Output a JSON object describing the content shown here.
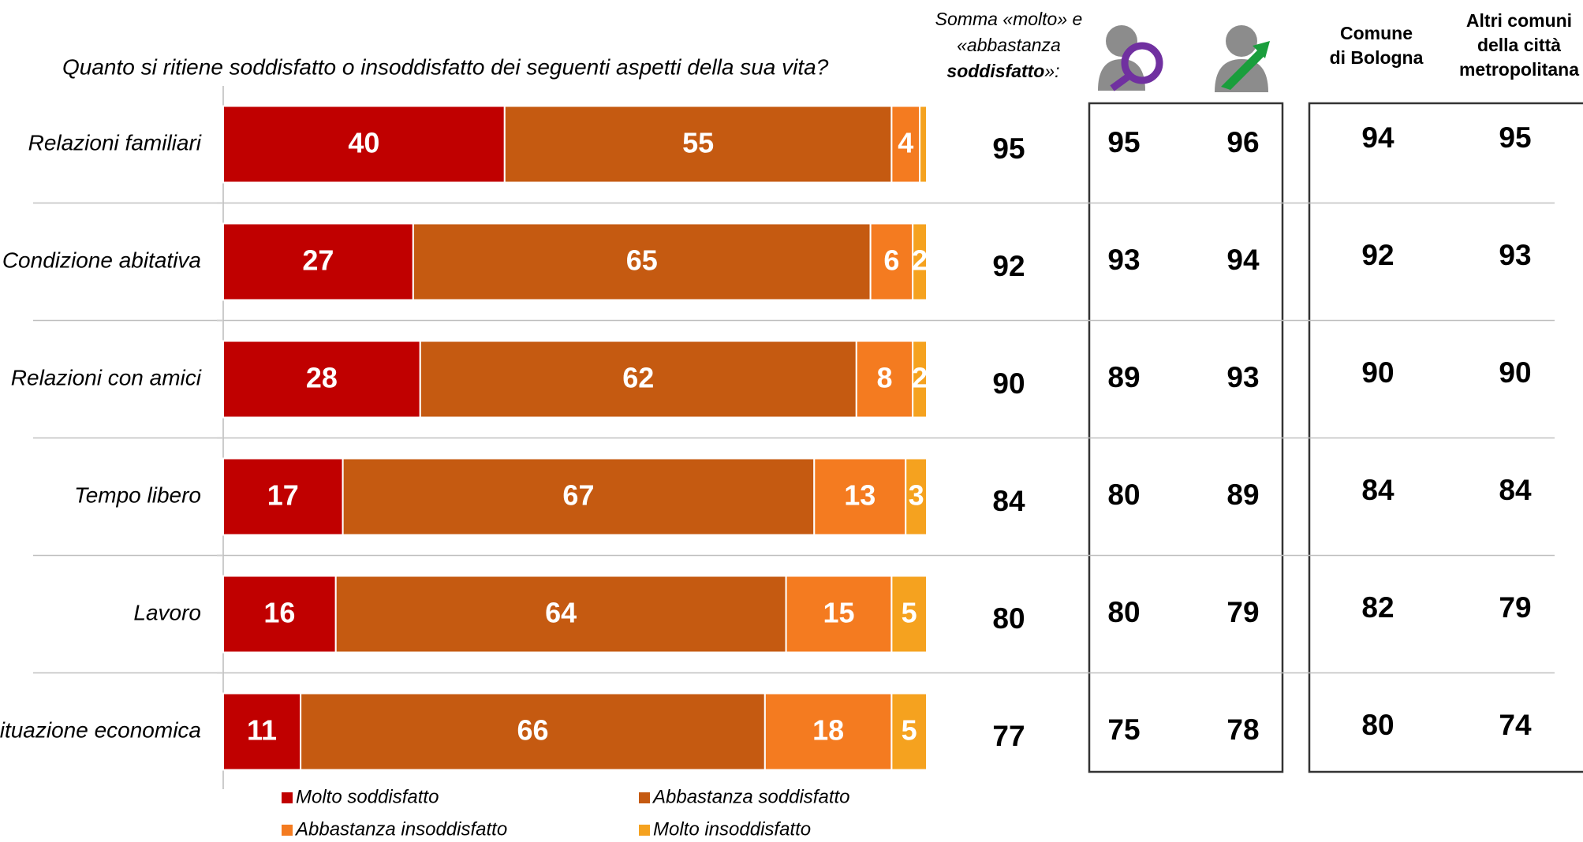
{
  "chart_data": {
    "type": "stacked_bar_h",
    "title": "Quanto si ritiene soddisfatto o insoddisfatto dei seguenti aspetti della sua vita?",
    "categories": [
      "Relazioni familiari",
      "Condizione abitativa",
      "Relazioni con amici",
      "Tempo libero",
      "Lavoro",
      "Situazione economica"
    ],
    "xlim": [
      0,
      100
    ],
    "series": [
      {
        "name": "Molto soddisfatto",
        "color": "#c00000",
        "values": [
          40,
          27,
          28,
          17,
          16,
          11
        ]
      },
      {
        "name": "Abbastanza soddisfatto",
        "color": "#c55a11",
        "values": [
          55,
          65,
          62,
          67,
          64,
          66
        ]
      },
      {
        "name": "Abbastanza insoddisfatto",
        "color": "#f47b20",
        "values": [
          4,
          6,
          8,
          13,
          15,
          18
        ]
      },
      {
        "name": "Molto insoddisfatto",
        "color": "#f5a21f",
        "values": [
          1,
          2,
          2,
          3,
          5,
          5
        ]
      }
    ],
    "table": {
      "somma_header": [
        "Somma «molto» e",
        "«abbastanza",
        "soddisfatto",
        "»:"
      ],
      "comune_header": [
        "Comune",
        "di Bologna"
      ],
      "altri_header": [
        "Altri comuni",
        "della città",
        "metropolitana"
      ],
      "somma": [
        95,
        92,
        90,
        84,
        80,
        77
      ],
      "donne": [
        95,
        93,
        89,
        80,
        80,
        75
      ],
      "uomini": [
        96,
        94,
        93,
        89,
        79,
        78
      ],
      "bologna": [
        94,
        92,
        90,
        84,
        82,
        80
      ],
      "altri": [
        95,
        93,
        90,
        84,
        79,
        74
      ]
    }
  }
}
